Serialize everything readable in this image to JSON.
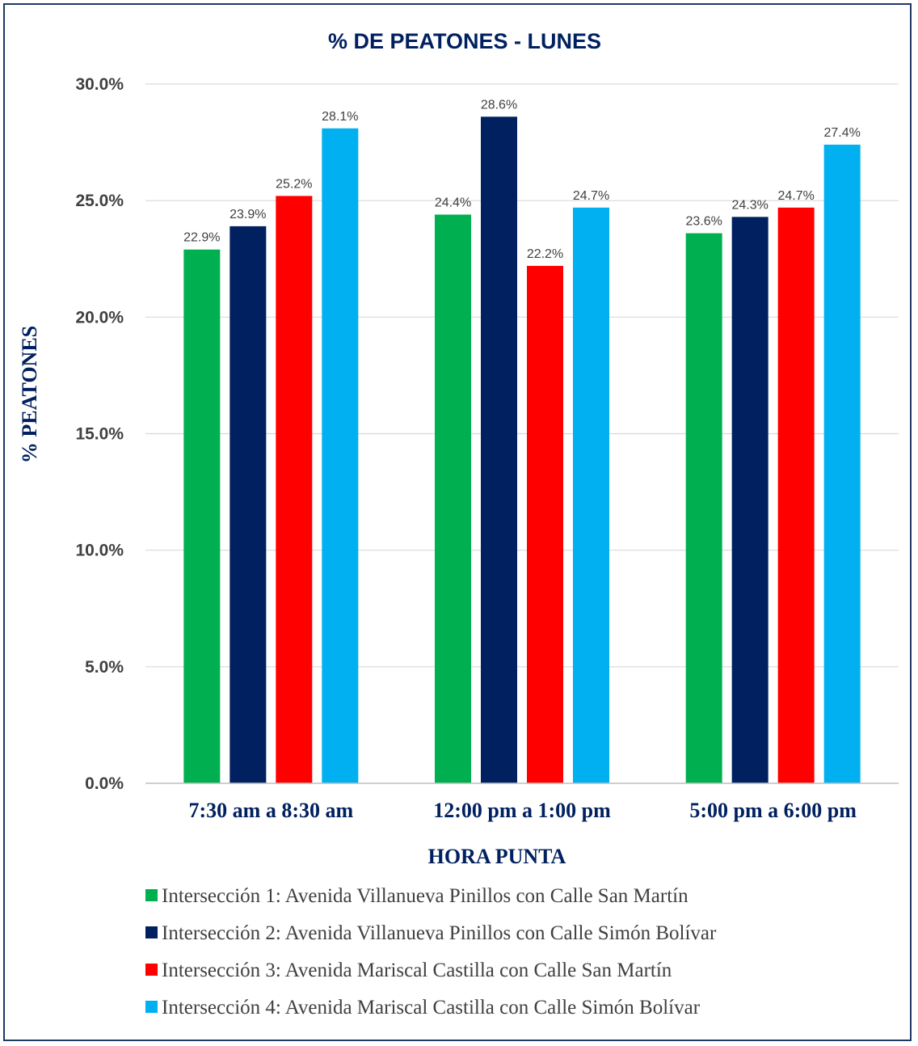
{
  "chart_data": {
    "type": "bar",
    "title": "% DE PEATONES - LUNES",
    "xlabel": "HORA PUNTA",
    "ylabel": "% PEATONES",
    "ylim": [
      0,
      30
    ],
    "yticks": [
      "0.0%",
      "5.0%",
      "10.0%",
      "15.0%",
      "20.0%",
      "25.0%",
      "30.0%"
    ],
    "grid": true,
    "legend_position": "bottom",
    "categories": [
      "7:30 am a 8:30 am",
      "12:00 pm a 1:00 pm",
      "5:00 pm a 6:00 pm"
    ],
    "series": [
      {
        "name": "Intersección 1: Avenida Villanueva Pinillos con Calle San Martín",
        "color": "#00b050",
        "values": [
          22.9,
          24.4,
          23.6
        ],
        "labels": [
          "22.9%",
          "24.4%",
          "23.6%"
        ]
      },
      {
        "name": "Intersección 2: Avenida Villanueva Pinillos con Calle Simón Bolívar",
        "color": "#002060",
        "values": [
          23.9,
          28.6,
          24.3
        ],
        "labels": [
          "23.9%",
          "28.6%",
          "24.3%"
        ]
      },
      {
        "name": "Intersección 3: Avenida Mariscal Castilla con Calle San Martín",
        "color": "#ff0000",
        "values": [
          25.2,
          22.2,
          24.7
        ],
        "labels": [
          "25.2%",
          "22.2%",
          "24.7%"
        ]
      },
      {
        "name": "Intersección 4: Avenida Mariscal Castilla con Calle Simón Bolívar",
        "color": "#00b0f0",
        "values": [
          28.1,
          24.7,
          27.4
        ],
        "labels": [
          "28.1%",
          "24.7%",
          "27.4%"
        ]
      }
    ]
  }
}
